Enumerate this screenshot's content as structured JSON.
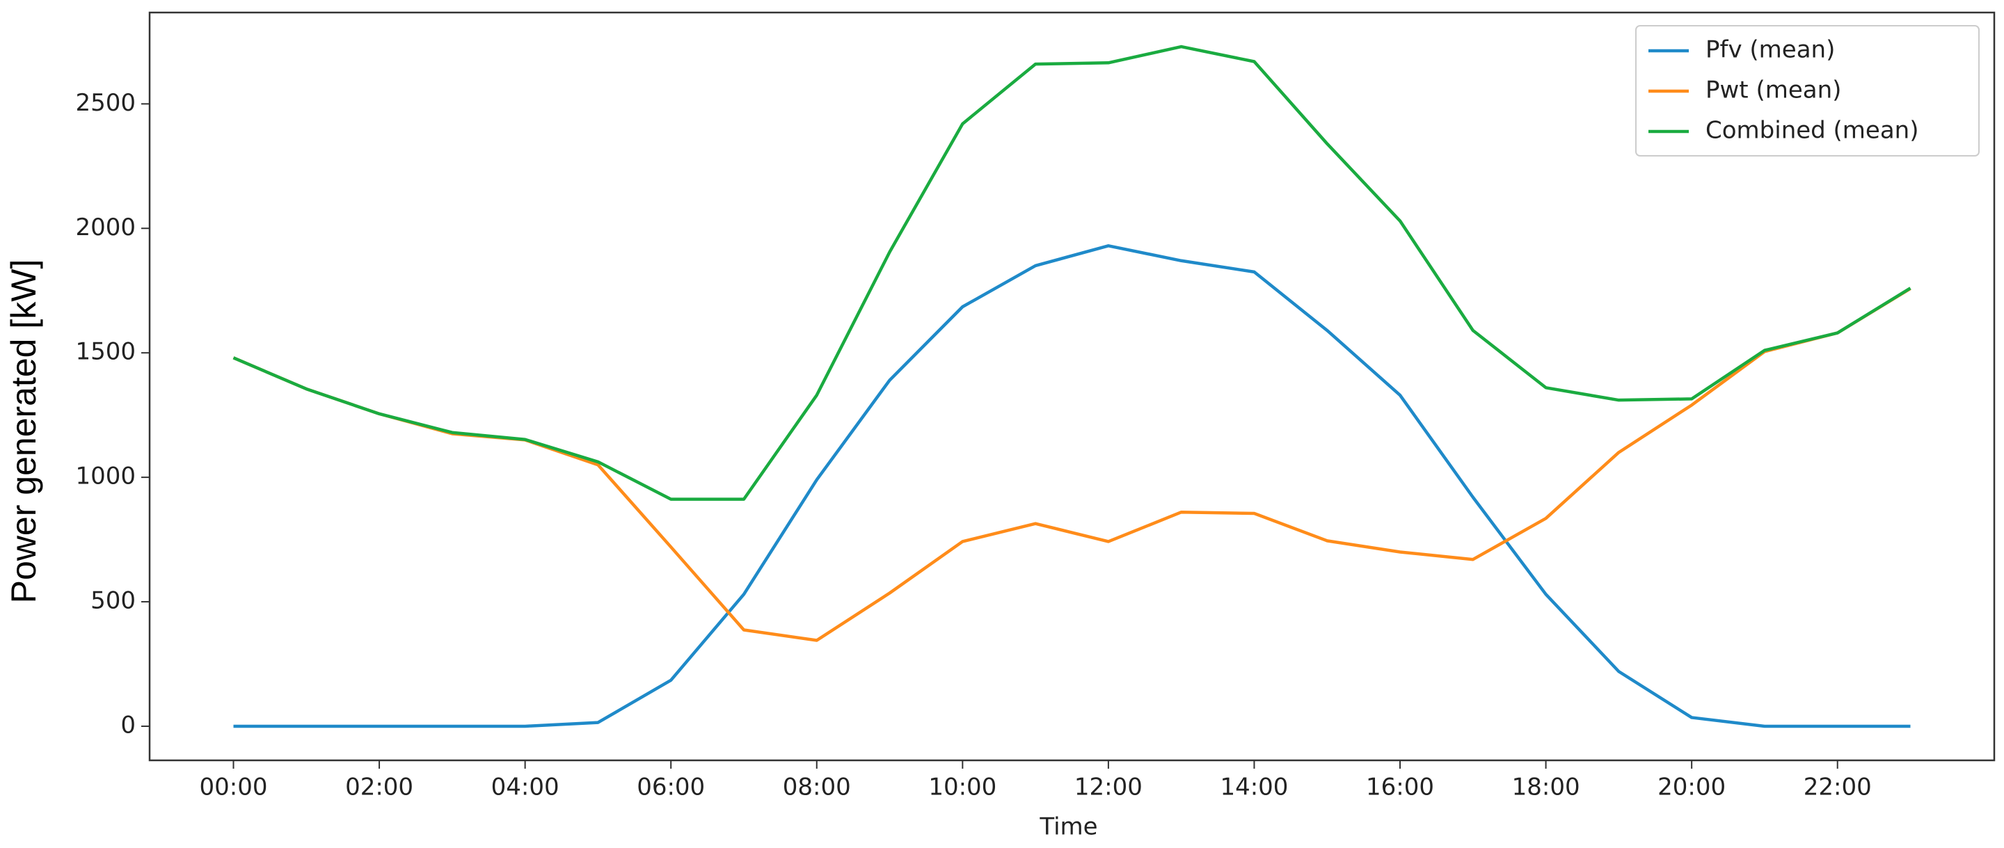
{
  "chart_data": {
    "type": "line",
    "xlabel": "Time",
    "ylabel": "Power generated [kW]",
    "x": [
      0,
      1,
      2,
      3,
      4,
      5,
      6,
      7,
      8,
      9,
      10,
      11,
      12,
      13,
      14,
      15,
      16,
      17,
      18,
      19,
      20,
      21,
      22,
      23
    ],
    "series": [
      {
        "name": "Pfv (mean)",
        "color": "#1f8ac9",
        "values": [
          0,
          0,
          0,
          0,
          0,
          15,
          185,
          530,
          990,
          1390,
          1685,
          1850,
          1930,
          1870,
          1825,
          1590,
          1330,
          920,
          530,
          220,
          35,
          0,
          0,
          0
        ]
      },
      {
        "name": "Pwt (mean)",
        "color": "#ff8c1a",
        "values": [
          1480,
          1355,
          1255,
          1175,
          1150,
          1050,
          720,
          387,
          345,
          535,
          742,
          814,
          742,
          860,
          855,
          745,
          700,
          670,
          835,
          1100,
          1290,
          1505,
          1580,
          1758
        ]
      },
      {
        "name": "Combined (mean)",
        "color": "#1aab40",
        "values": [
          1480,
          1355,
          1255,
          1180,
          1152,
          1062,
          912,
          912,
          1330,
          1905,
          2420,
          2660,
          2665,
          2730,
          2670,
          2340,
          2030,
          1590,
          1360,
          1310,
          1315,
          1510,
          1580,
          1760
        ]
      }
    ],
    "xlim": [
      -1.15,
      24.15
    ],
    "xticks": [
      {
        "value": 0,
        "label": "00:00"
      },
      {
        "value": 2,
        "label": "02:00"
      },
      {
        "value": 4,
        "label": "04:00"
      },
      {
        "value": 6,
        "label": "06:00"
      },
      {
        "value": 8,
        "label": "08:00"
      },
      {
        "value": 10,
        "label": "10:00"
      },
      {
        "value": 12,
        "label": "12:00"
      },
      {
        "value": 14,
        "label": "14:00"
      },
      {
        "value": 16,
        "label": "16:00"
      },
      {
        "value": 18,
        "label": "18:00"
      },
      {
        "value": 20,
        "label": "20:00"
      },
      {
        "value": 22,
        "label": "22:00"
      }
    ],
    "ylim": [
      -137,
      2867
    ],
    "yticks": [
      0,
      500,
      1000,
      1500,
      2000,
      2500
    ],
    "grid": false,
    "legend": "upper right"
  }
}
